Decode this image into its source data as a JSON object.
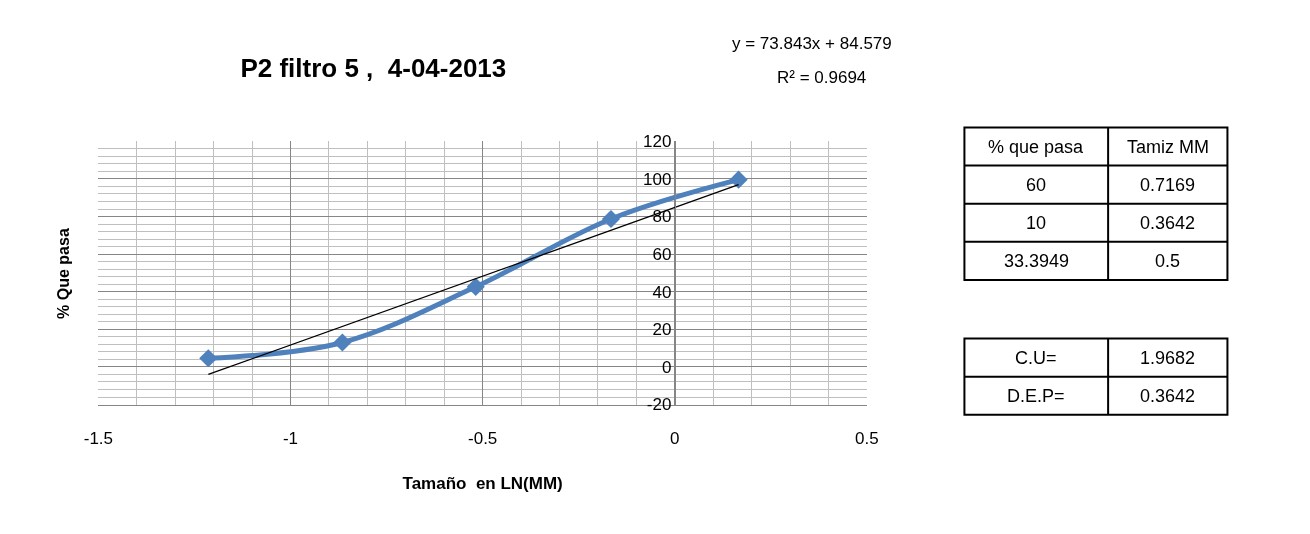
{
  "chart_data": [
    {
      "type": "line",
      "title": "P2 filtro 5 ,  4-04-2013",
      "xlabel": "Tamaño  en LN(MM)",
      "ylabel": "% Que pasa",
      "annotations": [
        "y = 73.843x + 84.579",
        "R² = 0.9694"
      ],
      "xlim": [
        -1.5,
        0.5
      ],
      "xticks": [
        -1.5,
        -1,
        -0.5,
        0,
        0.5
      ],
      "ylim": [
        -20,
        120
      ],
      "yticks": [
        -20,
        0,
        20,
        40,
        60,
        80,
        100,
        120
      ],
      "grid": true,
      "series": [
        {
          "color": "#4f81bd",
          "marker": "diamond",
          "x": [
            -1.214,
            -0.865,
            -0.518,
            -0.166,
            0.166
          ],
          "values": [
            4.6,
            13,
            42.6,
            78.7,
            99.6
          ]
        },
        {
          "color": "#000000",
          "marker": "none",
          "x": [
            -1.214,
            0.166
          ],
          "values": [
            -4,
            97
          ]
        }
      ]
    },
    {
      "type": "other",
      "annotations": [
        "% que pasa",
        "Tamiz MM",
        "60",
        "0.7169",
        "10",
        "0.3642",
        "33.3949",
        "0.5"
      ]
    },
    {
      "type": "other",
      "annotations": [
        "C.U=",
        "1.9682",
        "D.E.P=",
        "0.3642"
      ]
    }
  ]
}
